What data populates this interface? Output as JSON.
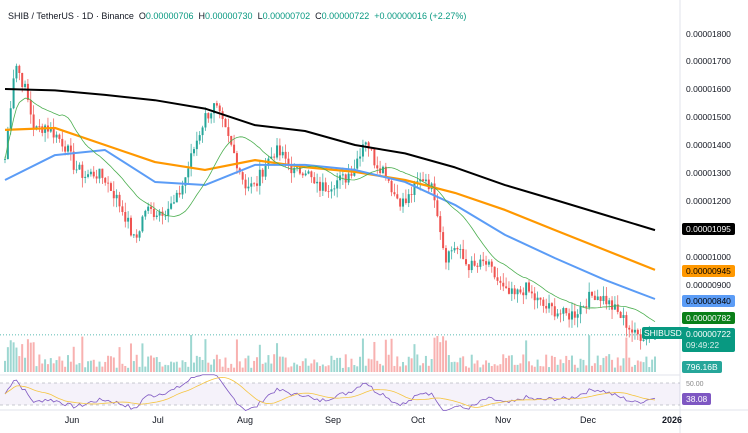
{
  "legend": {
    "symbol": "SHIB / TetherUS · 1D · Binance",
    "open_label": "O",
    "open": "0.00000706",
    "high_label": "H",
    "high": "0.00000730",
    "low_label": "L",
    "low": "0.00000702",
    "close_label": "C",
    "close": "0.00000722",
    "change": "+0.00000016 (+2.27%)"
  },
  "price_axis": {
    "ticks": [
      "0.00001800",
      "0.00001700",
      "0.00001600",
      "0.00001500",
      "0.00001400",
      "0.00001300",
      "0.00001200",
      "0.00001000",
      "0.00000900"
    ]
  },
  "labels": {
    "ma200": {
      "value": "0.00001095",
      "color": "#000000"
    },
    "ma100": {
      "value": "0.00000945",
      "color": "#ff9800"
    },
    "ma50": {
      "value": "0.00000840",
      "color": "#5b9cf6"
    },
    "ma20": {
      "value": "0.00000782",
      "color": "#0a7f18"
    },
    "symbol_tag": "SHIBUSDT",
    "last_price": "0.00000722",
    "countdown": "09:49:22",
    "volume": "796.16B",
    "rsi": "38.08",
    "rsi_level": "50.00"
  },
  "time_axis": [
    "Jun",
    "Jul",
    "Aug",
    "Sep",
    "Oct",
    "Nov",
    "Dec",
    "2026"
  ],
  "colors": {
    "up": "#26a69a",
    "down": "#ef5350",
    "rsi": "#7e57c2"
  },
  "chart_data": {
    "type": "candlestick",
    "unit": "1e-8 USDT",
    "closes": [
      1350,
      1700,
      1600,
      1450,
      1470,
      1440,
      1400,
      1320,
      1290,
      1300,
      1280,
      1220,
      1150,
      1050,
      1170,
      1160,
      1170,
      1190,
      1280,
      1400,
      1500,
      1540,
      1450,
      1360,
      1260,
      1250,
      1330,
      1380,
      1350,
      1300,
      1320,
      1250,
      1250,
      1270,
      1280,
      1330,
      1430,
      1340,
      1310,
      1220,
      1190,
      1250,
      1290,
      1220,
      1000,
      1040,
      980,
      960,
      980,
      930,
      870,
      860,
      890,
      850,
      820,
      810,
      790,
      800,
      840,
      870,
      850,
      810,
      770,
      720,
      722,
      722
    ],
    "ma200": [
      1600,
      1595,
      1579,
      1560,
      1530,
      1471,
      1450,
      1400,
      1370,
      1320,
      1257,
      1204,
      1150,
      1096
    ],
    "ma100": [
      1454,
      1461,
      1400,
      1339,
      1311,
      1346,
      1321,
      1304,
      1275,
      1229,
      1168,
      1096,
      1025,
      954
    ],
    "ma50": [
      1275,
      1364,
      1382,
      1268,
      1257,
      1329,
      1329,
      1311,
      1268,
      1186,
      1079,
      996,
      918,
      850
    ],
    "ylim": [
      700,
      1800
    ]
  }
}
